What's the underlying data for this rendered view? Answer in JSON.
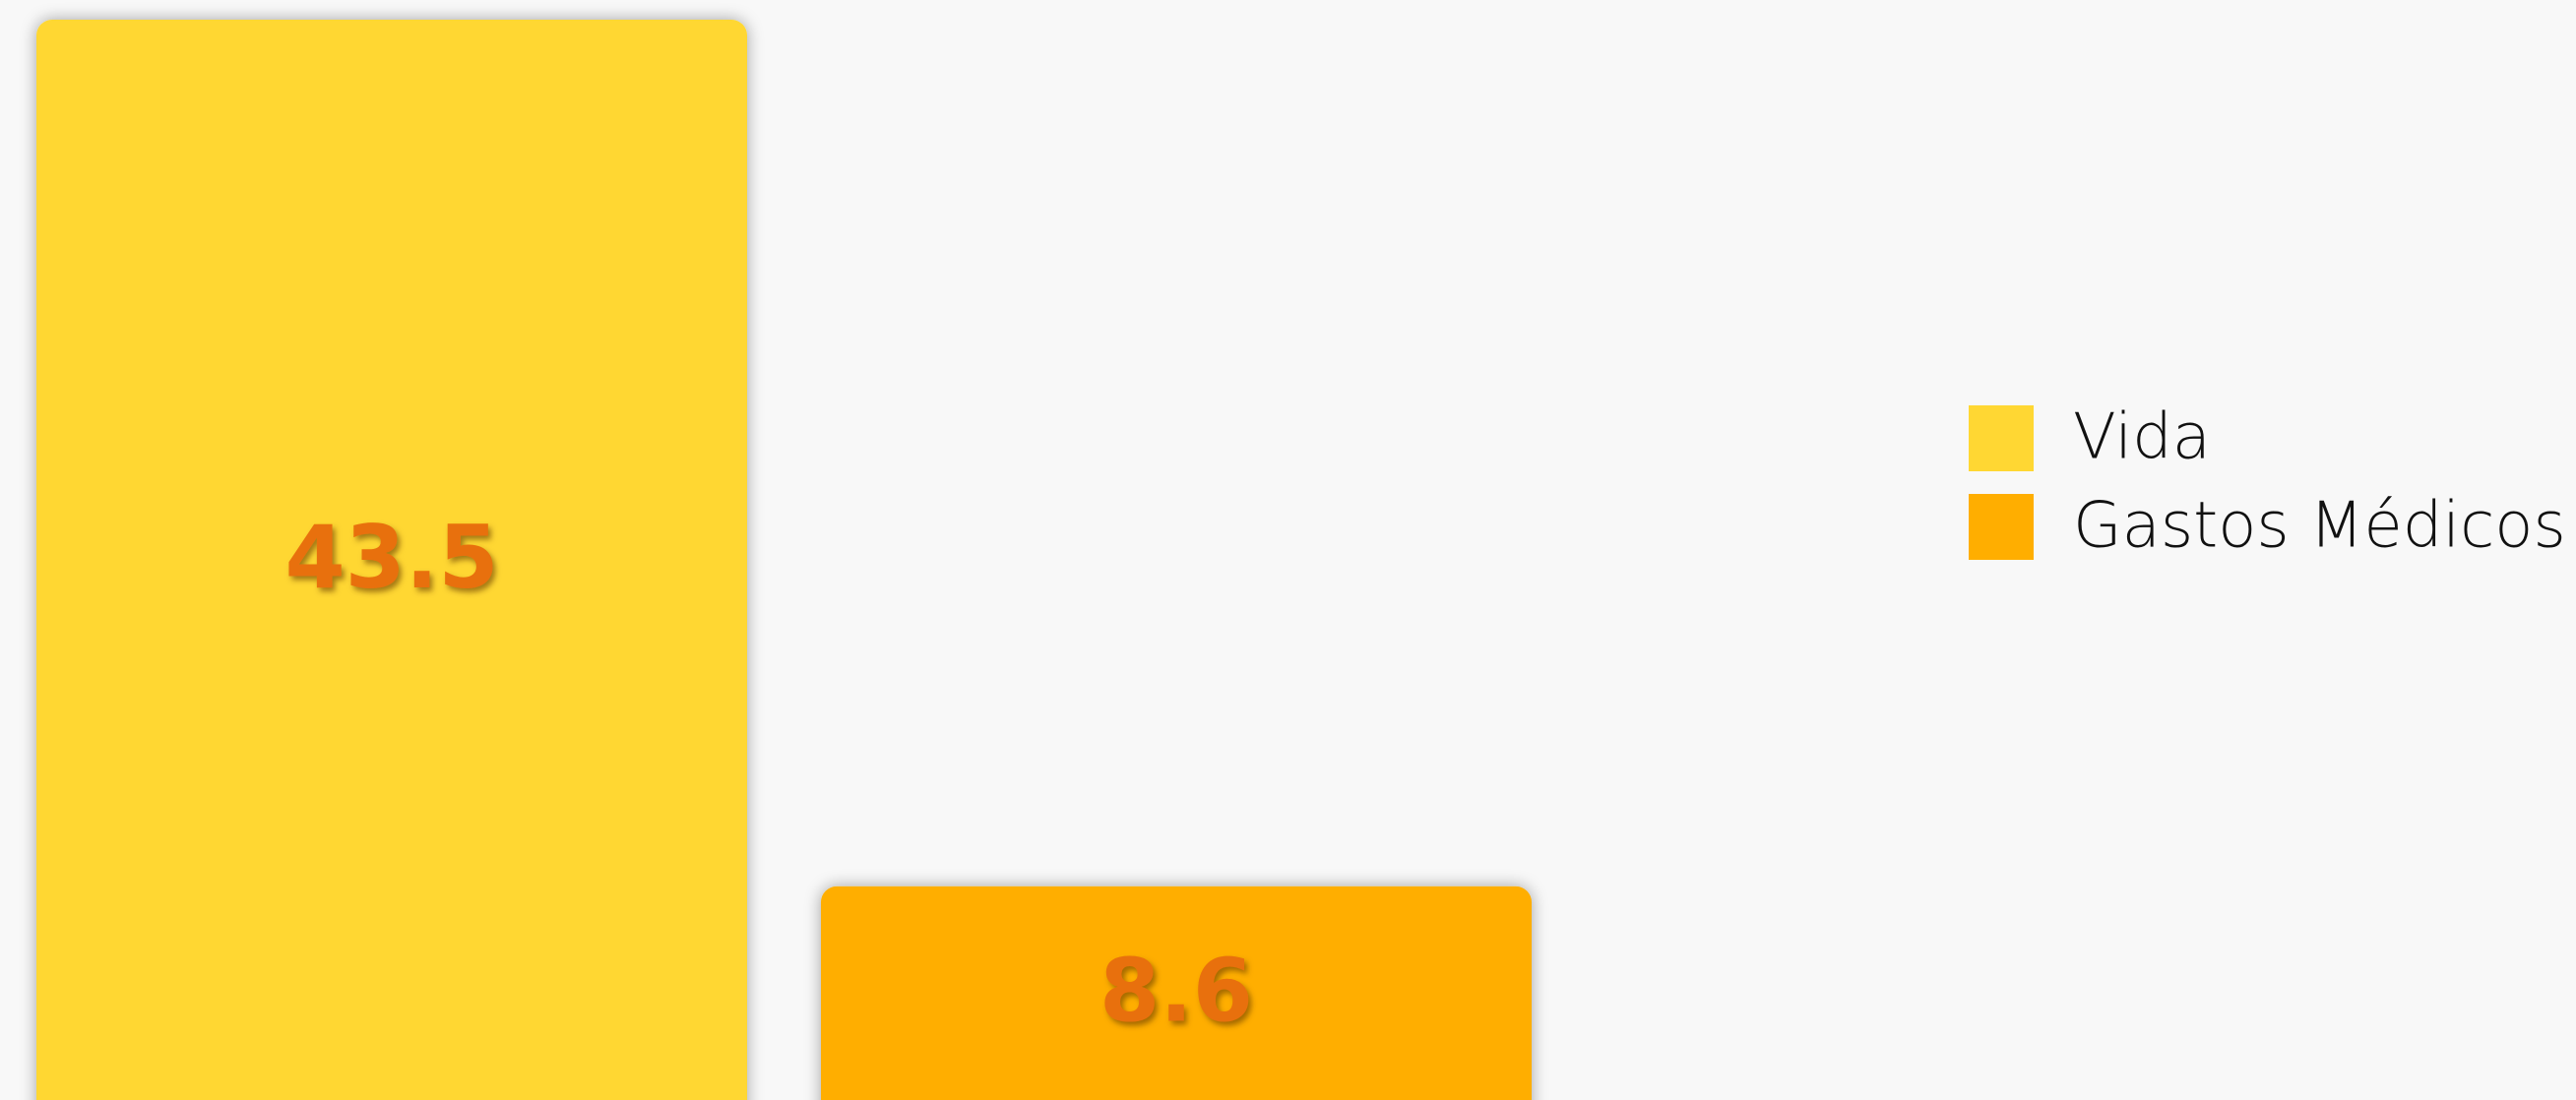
{
  "chart_data": {
    "type": "bar",
    "series": [
      {
        "name": "Vida",
        "color": "#FFD733",
        "values": [
          43.5
        ]
      },
      {
        "name": "Gastos Médicos",
        "color": "#FFAE00",
        "values": [
          8.6
        ]
      }
    ],
    "label_color": "#E8700A",
    "legend": "right"
  }
}
